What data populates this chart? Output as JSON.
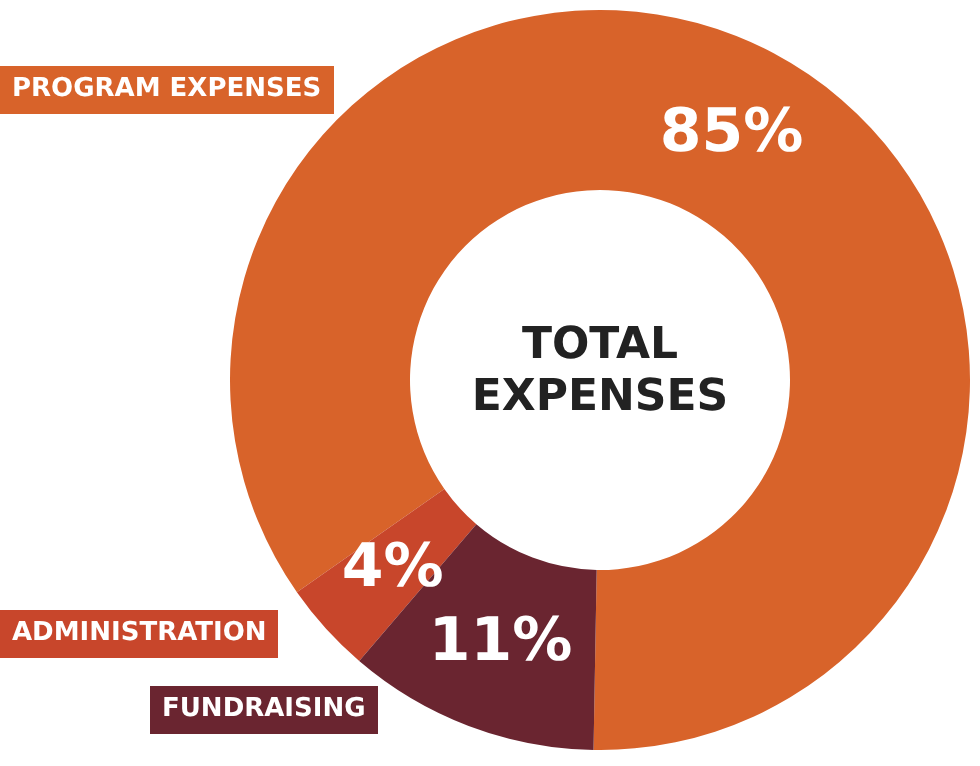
{
  "chart_data": {
    "type": "donut",
    "title": "TOTAL EXPENSES",
    "categories": [
      "PROGRAM EXPENSES",
      "ADMINISTRATION",
      "FUNDRAISING"
    ],
    "values": [
      85,
      4,
      11
    ],
    "colors": [
      "#d8632a",
      "#c8462b",
      "#6a2530"
    ],
    "value_labels": [
      "85%",
      "4%",
      "11%"
    ]
  }
}
